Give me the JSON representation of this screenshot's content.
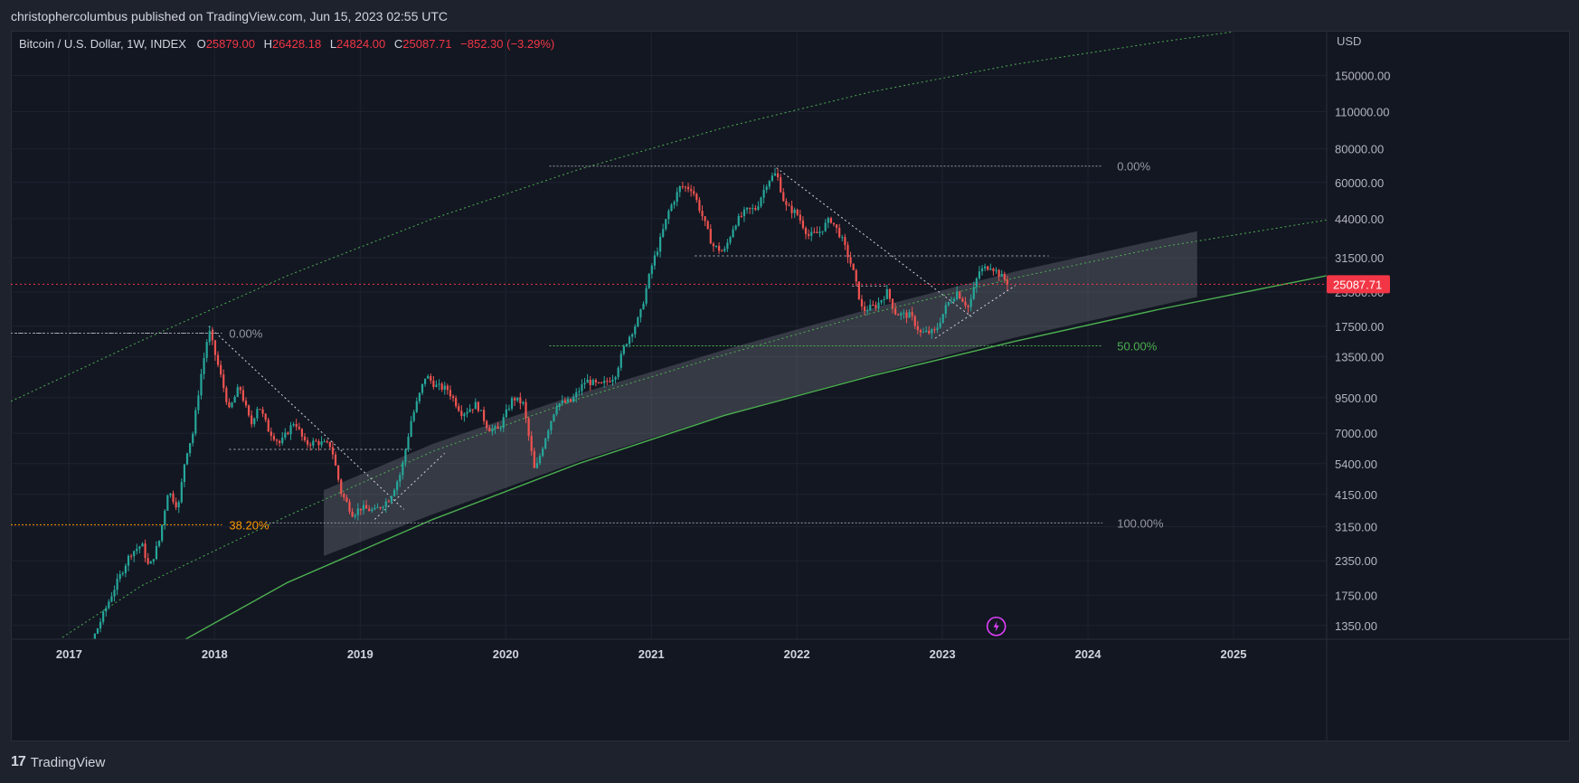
{
  "publisher": "christophercolumbus published on TradingView.com, Jun 15, 2023 02:55 UTC",
  "footer": {
    "brand": "TradingView",
    "logo_icon": "tradingview-logo-icon"
  },
  "chart_data": {
    "type": "candlestick",
    "title": "Bitcoin / U.S. Dollar, 1W, INDEX",
    "ohlc": {
      "O": {
        "label": "O",
        "value": "25879.00"
      },
      "H": {
        "label": "H",
        "value": "26428.18"
      },
      "L": {
        "label": "L",
        "value": "24824.00"
      },
      "C": {
        "label": "C",
        "value": "25087.71"
      },
      "change": "−852.30 (−3.29%)"
    },
    "currency": "USD",
    "last_price": 25087.71,
    "last_price_label": "25087.71",
    "y_scale": "log",
    "ylim": [
      1200,
      220000
    ],
    "xlim": [
      2016.6,
      2025.64
    ],
    "y_ticks": [
      {
        "v": 150000,
        "label": "150000.00"
      },
      {
        "v": 110000,
        "label": "110000.00"
      },
      {
        "v": 80000,
        "label": "80000.00"
      },
      {
        "v": 60000,
        "label": "60000.00"
      },
      {
        "v": 44000,
        "label": "44000.00"
      },
      {
        "v": 31500,
        "label": "31500.00"
      },
      {
        "v": 23500,
        "label": "23500.00"
      },
      {
        "v": 17500,
        "label": "17500.00"
      },
      {
        "v": 13500,
        "label": "13500.00"
      },
      {
        "v": 9500,
        "label": "9500.00"
      },
      {
        "v": 7000,
        "label": "7000.00"
      },
      {
        "v": 5400,
        "label": "5400.00"
      },
      {
        "v": 4150,
        "label": "4150.00"
      },
      {
        "v": 3150,
        "label": "3150.00"
      },
      {
        "v": 2350,
        "label": "2350.00"
      },
      {
        "v": 1750,
        "label": "1750.00"
      },
      {
        "v": 1350,
        "label": "1350.00"
      }
    ],
    "x_ticks": [
      {
        "v": 2017,
        "label": "2017"
      },
      {
        "v": 2018,
        "label": "2018"
      },
      {
        "v": 2019,
        "label": "2019"
      },
      {
        "v": 2020,
        "label": "2020"
      },
      {
        "v": 2021,
        "label": "2021"
      },
      {
        "v": 2022,
        "label": "2022"
      },
      {
        "v": 2023,
        "label": "2023"
      },
      {
        "v": 2024,
        "label": "2024"
      },
      {
        "v": 2025,
        "label": "2025"
      }
    ],
    "price_path": [
      [
        2016.85,
        1000
      ],
      [
        2017.0,
        1000
      ],
      [
        2017.15,
        1150
      ],
      [
        2017.3,
        1800
      ],
      [
        2017.42,
        2500
      ],
      [
        2017.5,
        2700
      ],
      [
        2017.55,
        2200
      ],
      [
        2017.62,
        2800
      ],
      [
        2017.68,
        4300
      ],
      [
        2017.75,
        3700
      ],
      [
        2017.8,
        5800
      ],
      [
        2017.85,
        7000
      ],
      [
        2017.9,
        11000
      ],
      [
        2017.96,
        17000
      ],
      [
        2018.0,
        14000
      ],
      [
        2018.05,
        11000
      ],
      [
        2018.1,
        8500
      ],
      [
        2018.17,
        10500
      ],
      [
        2018.25,
        7500
      ],
      [
        2018.3,
        9000
      ],
      [
        2018.37,
        7200
      ],
      [
        2018.45,
        6400
      ],
      [
        2018.55,
        7800
      ],
      [
        2018.62,
        6400
      ],
      [
        2018.7,
        6500
      ],
      [
        2018.8,
        6300
      ],
      [
        2018.87,
        4200
      ],
      [
        2018.95,
        3500
      ],
      [
        2019.0,
        3700
      ],
      [
        2019.1,
        3600
      ],
      [
        2019.2,
        4000
      ],
      [
        2019.28,
        5000
      ],
      [
        2019.35,
        7800
      ],
      [
        2019.45,
        11500
      ],
      [
        2019.52,
        10500
      ],
      [
        2019.6,
        10200
      ],
      [
        2019.7,
        8300
      ],
      [
        2019.8,
        9000
      ],
      [
        2019.88,
        7300
      ],
      [
        2019.95,
        7200
      ],
      [
        2020.05,
        9500
      ],
      [
        2020.12,
        9000
      ],
      [
        2020.2,
        5000
      ],
      [
        2020.28,
        7000
      ],
      [
        2020.35,
        9000
      ],
      [
        2020.45,
        9200
      ],
      [
        2020.55,
        11000
      ],
      [
        2020.65,
        10500
      ],
      [
        2020.75,
        11500
      ],
      [
        2020.82,
        15000
      ],
      [
        2020.92,
        19000
      ],
      [
        2021.0,
        29000
      ],
      [
        2021.05,
        35000
      ],
      [
        2021.12,
        47000
      ],
      [
        2021.2,
        58000
      ],
      [
        2021.28,
        57000
      ],
      [
        2021.35,
        45000
      ],
      [
        2021.42,
        35000
      ],
      [
        2021.5,
        33000
      ],
      [
        2021.57,
        42000
      ],
      [
        2021.65,
        47000
      ],
      [
        2021.72,
        48000
      ],
      [
        2021.8,
        61000
      ],
      [
        2021.86,
        65000
      ],
      [
        2021.92,
        49000
      ],
      [
        2022.0,
        46000
      ],
      [
        2022.08,
        38000
      ],
      [
        2022.15,
        39000
      ],
      [
        2022.23,
        44000
      ],
      [
        2022.3,
        38000
      ],
      [
        2022.38,
        29000
      ],
      [
        2022.45,
        20000
      ],
      [
        2022.55,
        21000
      ],
      [
        2022.62,
        23500
      ],
      [
        2022.68,
        19500
      ],
      [
        2022.78,
        19200
      ],
      [
        2022.85,
        16500
      ],
      [
        2022.95,
        16700
      ],
      [
        2023.03,
        21000
      ],
      [
        2023.1,
        23500
      ],
      [
        2023.18,
        20500
      ],
      [
        2023.25,
        28000
      ],
      [
        2023.33,
        29500
      ],
      [
        2023.4,
        27000
      ],
      [
        2023.46,
        25087
      ]
    ],
    "channel_lines": [
      {
        "points": [
          [
            2016.6,
            9200
          ],
          [
            2017.5,
            15500
          ],
          [
            2018.5,
            27000
          ],
          [
            2019.5,
            44000
          ],
          [
            2020.5,
            67000
          ],
          [
            2021.5,
            96000
          ],
          [
            2022.5,
            130000
          ],
          [
            2023.5,
            165000
          ],
          [
            2024.5,
            200000
          ],
          [
            2025.0,
            218000
          ]
        ],
        "style": "dotted",
        "color": "#4caf50"
      },
      {
        "points": [
          [
            2016.85,
            1120
          ],
          [
            2017.5,
            1900
          ],
          [
            2018.5,
            3450
          ],
          [
            2019.5,
            6000
          ],
          [
            2020.5,
            9400
          ],
          [
            2021.5,
            13700
          ],
          [
            2022.5,
            19500
          ],
          [
            2023.5,
            26500
          ],
          [
            2024.5,
            34500
          ],
          [
            2025.64,
            43500
          ]
        ],
        "style": "dotted",
        "color": "#4caf50"
      },
      {
        "points": [
          [
            2017.7,
            1120
          ],
          [
            2018.5,
            1950
          ],
          [
            2019.5,
            3350
          ],
          [
            2020.5,
            5400
          ],
          [
            2021.5,
            8150
          ],
          [
            2022.5,
            11400
          ],
          [
            2023.5,
            15400
          ],
          [
            2024.5,
            20300
          ],
          [
            2025.64,
            27000
          ]
        ],
        "style": "solid",
        "color": "#4caf50"
      }
    ],
    "regression_band": {
      "upper": [
        [
          2018.75,
          4300
        ],
        [
          2019.5,
          6400
        ],
        [
          2020.5,
          9800
        ],
        [
          2021.5,
          14300
        ],
        [
          2022.5,
          20300
        ],
        [
          2023.5,
          28000
        ],
        [
          2024.75,
          39500
        ]
      ],
      "lower": [
        [
          2018.75,
          2450
        ],
        [
          2019.5,
          3500
        ],
        [
          2020.5,
          5500
        ],
        [
          2021.5,
          8200
        ],
        [
          2022.5,
          11500
        ],
        [
          2023.5,
          15900
        ],
        [
          2024.75,
          22500
        ]
      ],
      "color": "#9598a1"
    },
    "trend_lines": [
      {
        "points": [
          [
            2017.96,
            17500
          ],
          [
            2019.3,
            3650
          ]
        ],
        "color": "#d1d4dc"
      },
      {
        "points": [
          [
            2019.1,
            3350
          ],
          [
            2019.58,
            5900
          ]
        ],
        "color": "#d1d4dc"
      },
      {
        "points": [
          [
            2021.86,
            68000
          ],
          [
            2023.2,
            19000
          ]
        ],
        "color": "#d1d4dc"
      },
      {
        "points": [
          [
            2022.95,
            15800
          ],
          [
            2023.5,
            24800
          ]
        ],
        "color": "#d1d4dc"
      }
    ],
    "horizontal_levels": [
      {
        "y": 16500,
        "x0": 2016.6,
        "x1": 2018.0,
        "color": "#b2b5be"
      },
      {
        "y": 6100,
        "x0": 2018.1,
        "x1": 2019.35,
        "color": "#b2b5be"
      },
      {
        "y": 32000,
        "x0": 2021.3,
        "x1": 2023.73,
        "color": "#b2b5be"
      },
      {
        "y": 24700,
        "x0": 2022.38,
        "x1": 2022.62,
        "color": "#b2b5be"
      },
      {
        "y": 25087,
        "x0": 2016.6,
        "x1": 2025.64,
        "color": "#f23645"
      }
    ],
    "fib_levels": [
      {
        "label": "0.00%",
        "y": 16500,
        "x0": 2016.6,
        "x1": 2018.05,
        "label_x": 2018.1,
        "color": "#9598a1"
      },
      {
        "label": "38.20%",
        "y": 3200,
        "x0": 2016.6,
        "x1": 2018.05,
        "label_x": 2018.1,
        "color": "#ff9800"
      },
      {
        "label": "0.00%",
        "y": 69000,
        "x0": 2020.3,
        "x1": 2024.1,
        "label_x": 2024.2,
        "color": "#9598a1"
      },
      {
        "label": "50.00%",
        "y": 14800,
        "x0": 2020.3,
        "x1": 2024.1,
        "label_x": 2024.2,
        "color": "#4caf50"
      },
      {
        "label": "100.00%",
        "y": 3250,
        "x0": 2018.35,
        "x1": 2024.1,
        "label_x": 2024.2,
        "color": "#9598a1"
      }
    ],
    "event_marker": {
      "x": 2023.37,
      "y": 1340,
      "icon": "lightning-icon",
      "color": "#e040fb"
    }
  }
}
